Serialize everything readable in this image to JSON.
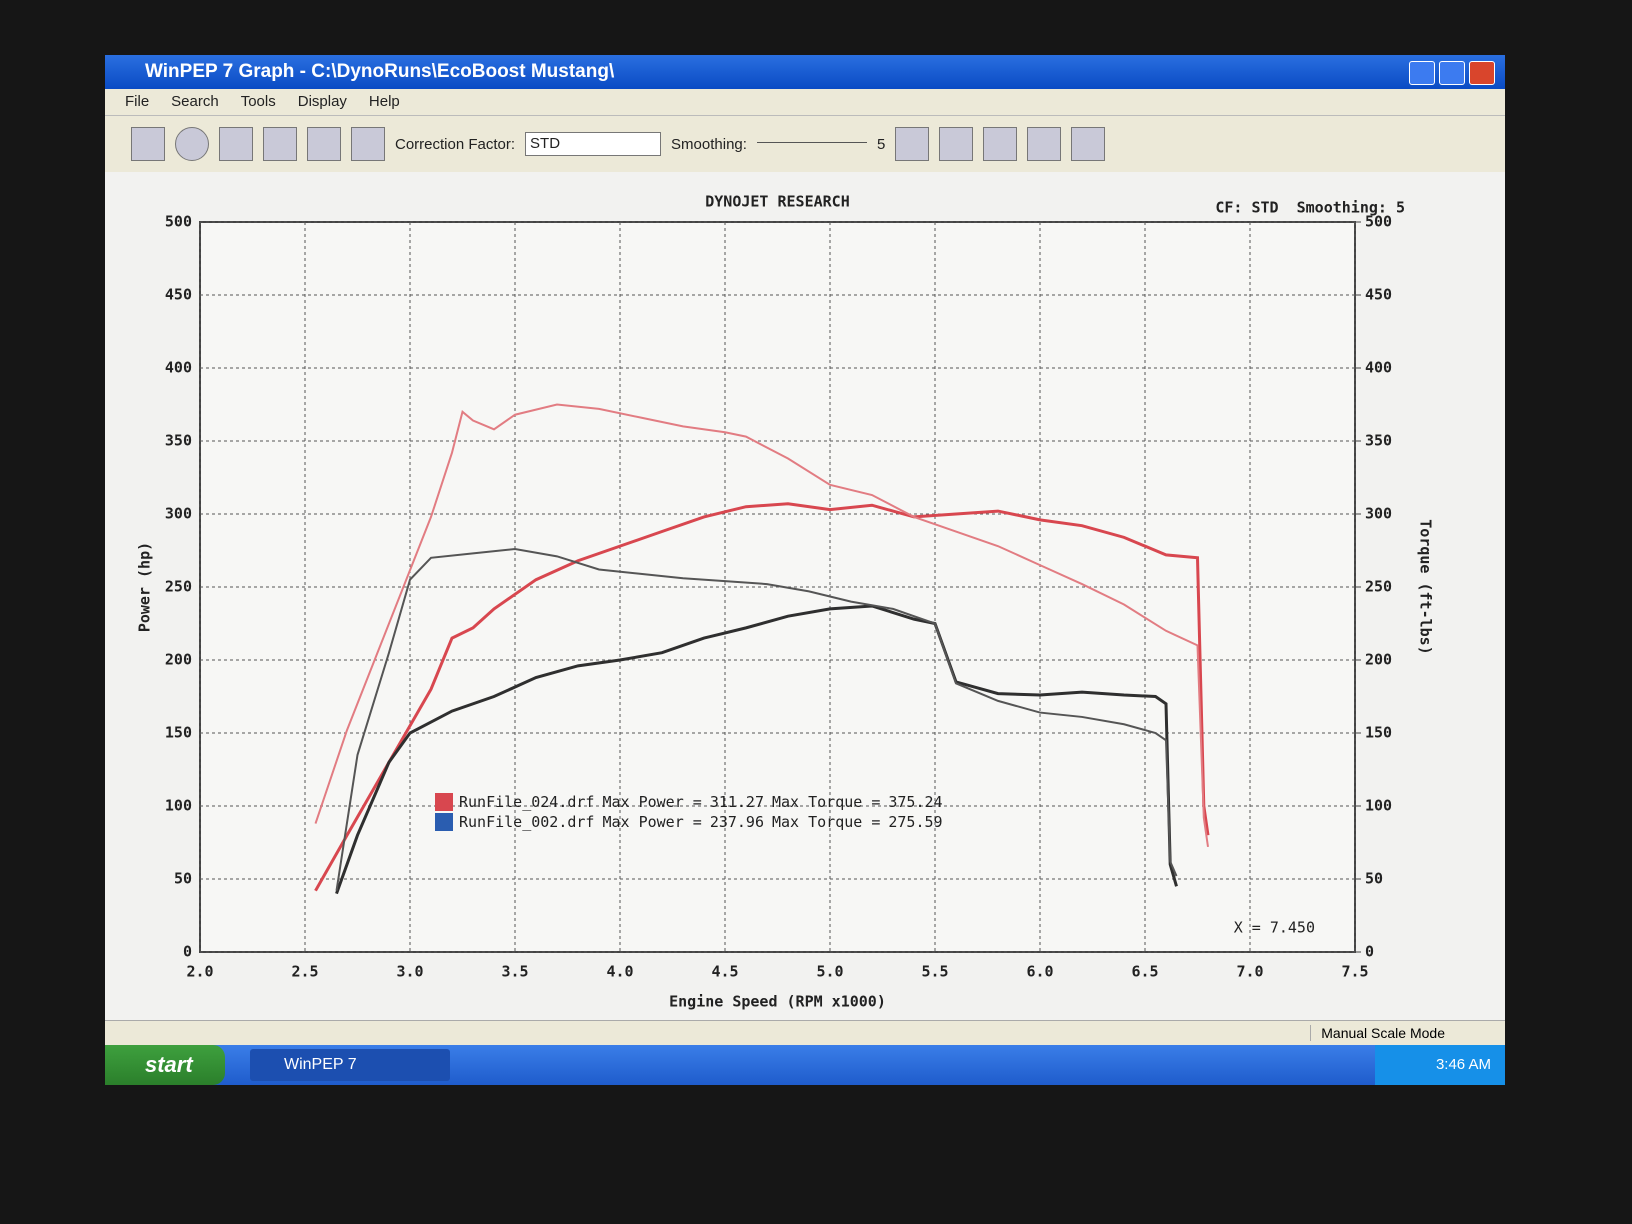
{
  "window": {
    "title": "WinPEP 7   Graph - C:\\DynoRuns\\EcoBoost Mustang\\",
    "menu": [
      "File",
      "Search",
      "Tools",
      "Display",
      "Help"
    ],
    "toolbar": {
      "correction_label": "Correction Factor:",
      "correction_value": "STD",
      "smoothing_label": "Smoothing:",
      "smoothing_value": "5"
    },
    "status": "Manual Scale Mode"
  },
  "taskbar": {
    "start": "start",
    "task": "WinPEP 7",
    "clock": "3:46 AM"
  },
  "chart_data": {
    "type": "line",
    "title": "DYNOJET RESEARCH",
    "subtitle": "CF: STD  Smoothing: 5",
    "annotation": "X = 7.450",
    "xlabel": "Engine Speed (RPM x1000)",
    "ylabel": "Power (hp)",
    "y2label": "Torque (ft-lbs)",
    "xlim": [
      2,
      7.5
    ],
    "xticks": [
      {
        "value": 2,
        "label": "2.0"
      },
      2.5,
      {
        "value": 3,
        "label": "3.0"
      },
      3.5,
      {
        "value": 4,
        "label": "4.0"
      },
      4.5,
      {
        "value": 5,
        "label": "5.0"
      },
      5.5,
      {
        "value": 6,
        "label": "6.0"
      },
      6.5,
      {
        "value": 7,
        "label": "7.0"
      },
      7.5
    ],
    "ylim": [
      0,
      500
    ],
    "yticks": [
      0,
      50,
      100,
      150,
      200,
      250,
      300,
      350,
      400,
      450,
      500
    ],
    "y2lim": [
      0,
      500
    ],
    "y2ticks": [
      0,
      50,
      100,
      150,
      200,
      250,
      300,
      350,
      400,
      450,
      500
    ],
    "grid": true,
    "series": [
      {
        "color": "#d8474f",
        "axis": "y",
        "x": [
          2.55,
          2.7,
          2.9,
          3.1,
          3.2,
          3.3,
          3.4,
          3.6,
          3.8,
          4.0,
          4.2,
          4.4,
          4.6,
          4.8,
          5.0,
          5.2,
          5.4,
          5.6,
          5.8,
          6.0,
          6.2,
          6.4,
          6.6,
          6.75,
          6.78,
          6.8
        ],
        "values": [
          42,
          80,
          130,
          180,
          215,
          222,
          235,
          255,
          268,
          278,
          288,
          298,
          305,
          307,
          303,
          306,
          298,
          300,
          302,
          296,
          292,
          284,
          272,
          270,
          100,
          80
        ]
      },
      {
        "color": "#e27c82",
        "axis": "y2",
        "x": [
          2.55,
          2.7,
          2.9,
          3.1,
          3.2,
          3.25,
          3.3,
          3.4,
          3.5,
          3.7,
          3.9,
          4.1,
          4.3,
          4.5,
          4.6,
          4.8,
          5.0,
          5.2,
          5.4,
          5.6,
          5.8,
          6.0,
          6.2,
          6.4,
          6.6,
          6.75,
          6.78,
          6.8
        ],
        "values": [
          88,
          152,
          225,
          298,
          342,
          370,
          364,
          358,
          368,
          375,
          372,
          366,
          360,
          356,
          353,
          338,
          320,
          313,
          298,
          288,
          278,
          265,
          252,
          238,
          220,
          210,
          92,
          72
        ]
      },
      {
        "color": "#2f2f2f",
        "axis": "y",
        "x": [
          2.65,
          2.75,
          2.9,
          3.0,
          3.2,
          3.4,
          3.6,
          3.8,
          4.0,
          4.2,
          4.4,
          4.6,
          4.8,
          5.0,
          5.2,
          5.4,
          5.5,
          5.6,
          5.8,
          6.0,
          6.2,
          6.4,
          6.55,
          6.6,
          6.62,
          6.65
        ],
        "values": [
          40,
          80,
          130,
          150,
          165,
          175,
          188,
          196,
          200,
          205,
          215,
          222,
          230,
          235,
          237,
          228,
          225,
          185,
          177,
          176,
          178,
          176,
          175,
          170,
          60,
          45
        ]
      },
      {
        "color": "#555555",
        "axis": "y2",
        "x": [
          2.65,
          2.75,
          2.9,
          3.0,
          3.1,
          3.3,
          3.5,
          3.7,
          3.9,
          4.1,
          4.3,
          4.5,
          4.7,
          4.9,
          5.1,
          5.3,
          5.5,
          5.6,
          5.8,
          6.0,
          6.2,
          6.4,
          6.55,
          6.6,
          6.62,
          6.65
        ],
        "values": [
          42,
          135,
          205,
          255,
          270,
          273,
          276,
          271,
          262,
          259,
          256,
          254,
          252,
          247,
          240,
          235,
          225,
          184,
          172,
          164,
          161,
          156,
          150,
          145,
          62,
          52
        ]
      }
    ],
    "legend": [
      {
        "file": "RunFile_024.drf",
        "power_label": "Max Power =",
        "max_power": 311.27,
        "torque_label": "Max Torque =",
        "max_torque": 375.24,
        "color": "#d8474f"
      },
      {
        "file": "RunFile_002.drf",
        "power_label": "Max Power =",
        "max_power": 237.96,
        "torque_label": "Max Torque =",
        "max_torque": 275.59,
        "color": "#2a5db0"
      }
    ]
  }
}
